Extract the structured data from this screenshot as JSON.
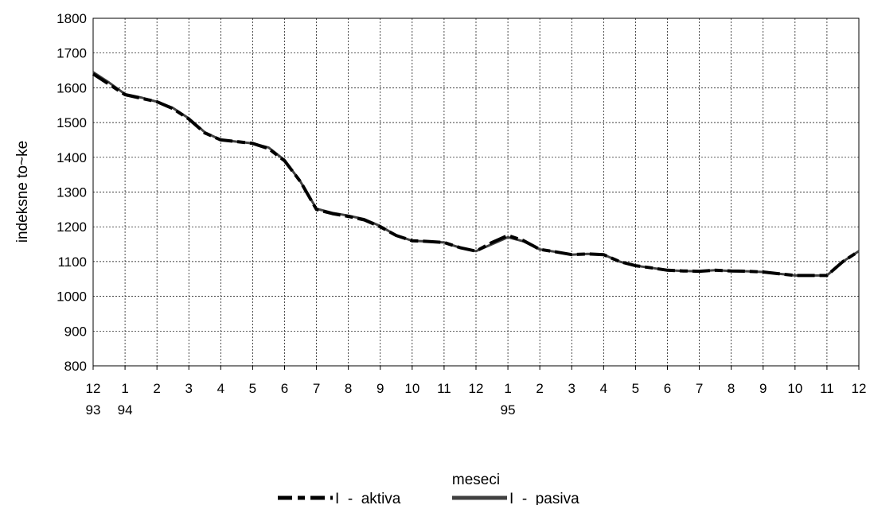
{
  "chart_data": {
    "type": "line",
    "title": "",
    "xlabel": "meseci",
    "ylabel": "indeksne  to~ke",
    "ylim": [
      800,
      1800
    ],
    "yticks": [
      800,
      900,
      1000,
      1100,
      1200,
      1300,
      1400,
      1500,
      1600,
      1700,
      1800
    ],
    "grid": true,
    "legend_position": "bottom",
    "colors": {
      "aktiva": "#000000",
      "pasiva": "#404040",
      "grid": "#000000"
    },
    "x_tick_labels": [
      {
        "month": "12",
        "year": "93"
      },
      {
        "month": "1",
        "year": "94"
      },
      {
        "month": "2",
        "year": ""
      },
      {
        "month": "3",
        "year": ""
      },
      {
        "month": "4",
        "year": ""
      },
      {
        "month": "5",
        "year": ""
      },
      {
        "month": "6",
        "year": ""
      },
      {
        "month": "7",
        "year": ""
      },
      {
        "month": "8",
        "year": ""
      },
      {
        "month": "9",
        "year": ""
      },
      {
        "month": "10",
        "year": ""
      },
      {
        "month": "11",
        "year": ""
      },
      {
        "month": "12",
        "year": ""
      },
      {
        "month": "1",
        "year": "95"
      },
      {
        "month": "2",
        "year": ""
      },
      {
        "month": "3",
        "year": ""
      },
      {
        "month": "4",
        "year": ""
      },
      {
        "month": "5",
        "year": ""
      },
      {
        "month": "6",
        "year": ""
      },
      {
        "month": "7",
        "year": ""
      },
      {
        "month": "8",
        "year": ""
      },
      {
        "month": "9",
        "year": ""
      },
      {
        "month": "10",
        "year": ""
      },
      {
        "month": "11",
        "year": ""
      },
      {
        "month": "12",
        "year": ""
      }
    ],
    "series": [
      {
        "name": "I  -  aktiva",
        "style": "dashed",
        "x": [
          0,
          0.5,
          1,
          1.5,
          2,
          2.5,
          3,
          3.5,
          4,
          4.5,
          5,
          5.5,
          6,
          6.5,
          7,
          7.5,
          8,
          8.5,
          9,
          9.5,
          10,
          10.5,
          11,
          11.5,
          12,
          12.5,
          13,
          13.5,
          14,
          14.5,
          15,
          15.5,
          16,
          16.5,
          17,
          17.5,
          18,
          18.5,
          19,
          19.5,
          20,
          20.5,
          21,
          21.5,
          22,
          22.5,
          23,
          23.5,
          24
        ],
        "values": [
          1640,
          1610,
          1580,
          1570,
          1560,
          1540,
          1510,
          1470,
          1450,
          1445,
          1440,
          1425,
          1390,
          1330,
          1250,
          1238,
          1230,
          1220,
          1200,
          1175,
          1160,
          1158,
          1155,
          1140,
          1130,
          1155,
          1175,
          1160,
          1135,
          1128,
          1120,
          1122,
          1120,
          1100,
          1088,
          1082,
          1075,
          1073,
          1072,
          1075,
          1073,
          1072,
          1070,
          1065,
          1060,
          1060,
          1060,
          1100,
          1130
        ]
      },
      {
        "name": "I  -  pasiva",
        "style": "solid",
        "x": [
          0,
          0.5,
          1,
          1.5,
          2,
          2.5,
          3,
          3.5,
          4,
          4.5,
          5,
          5.5,
          6,
          6.5,
          7,
          7.5,
          8,
          8.5,
          9,
          9.5,
          10,
          10.5,
          11,
          11.5,
          12,
          12.5,
          13,
          13.5,
          14,
          14.5,
          15,
          15.5,
          16,
          16.5,
          17,
          17.5,
          18,
          18.5,
          19,
          19.5,
          20,
          20.5,
          21,
          21.5,
          22,
          22.5,
          23,
          23.5,
          24
        ],
        "values": [
          1645,
          1615,
          1582,
          1572,
          1560,
          1542,
          1512,
          1472,
          1450,
          1445,
          1440,
          1428,
          1392,
          1330,
          1252,
          1240,
          1232,
          1222,
          1202,
          1175,
          1160,
          1158,
          1155,
          1140,
          1130,
          1150,
          1170,
          1158,
          1135,
          1128,
          1120,
          1122,
          1120,
          1100,
          1088,
          1082,
          1075,
          1073,
          1072,
          1075,
          1073,
          1072,
          1070,
          1065,
          1060,
          1060,
          1060,
          1100,
          1130
        ]
      }
    ]
  }
}
